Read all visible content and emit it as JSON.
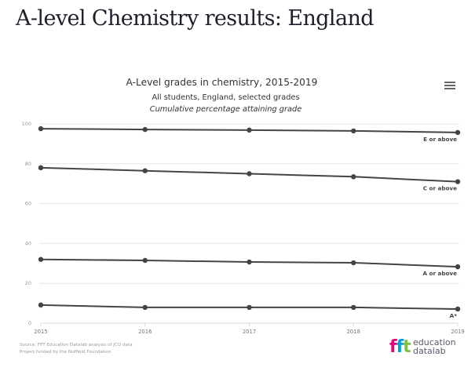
{
  "page": {
    "heading": "A-level Chemistry results: England"
  },
  "chart": {
    "menu_icon": "hamburger-menu-icon",
    "source_line1": "Source: FFT Education Datalab analysis of JCQ data",
    "source_line2": "Project funded by the Nuffield Foundation",
    "logo": {
      "mark_f1": "f",
      "mark_f2": "f",
      "mark_t": "t",
      "word1": "education",
      "word2": "datalab"
    },
    "colors": {
      "series": "#444444",
      "grid": "#e6e6e6",
      "tick_label": "#666666",
      "series_label": "#444444"
    }
  },
  "chart_data": {
    "type": "line",
    "title": "A-Level grades in chemistry, 2015-2019",
    "subtitle": "All students, England, selected grades",
    "subtitle2": "Cumulative percentage attaining grade",
    "xlabel": "",
    "ylabel": "",
    "x": [
      2015,
      2016,
      2017,
      2018,
      2019
    ],
    "x_tick_labels": [
      "2015",
      "2016",
      "2017",
      "2018",
      "2019"
    ],
    "ylim": [
      0,
      100
    ],
    "y_ticks": [
      0,
      20,
      40,
      60,
      80,
      100
    ],
    "y_tick_labels": [
      "0",
      "20",
      "40",
      "60",
      "80",
      "100"
    ],
    "grid": true,
    "legend": "inline-right",
    "series": [
      {
        "name": "E or above",
        "values": [
          97.6,
          97.2,
          96.9,
          96.5,
          95.7
        ]
      },
      {
        "name": "C or above",
        "values": [
          78.0,
          76.5,
          75.0,
          73.5,
          71.0
        ]
      },
      {
        "name": "A or above",
        "values": [
          32.0,
          31.5,
          30.7,
          30.3,
          28.3
        ]
      },
      {
        "name": "A*",
        "values": [
          9.1,
          7.9,
          7.9,
          7.9,
          7.1
        ]
      }
    ]
  }
}
